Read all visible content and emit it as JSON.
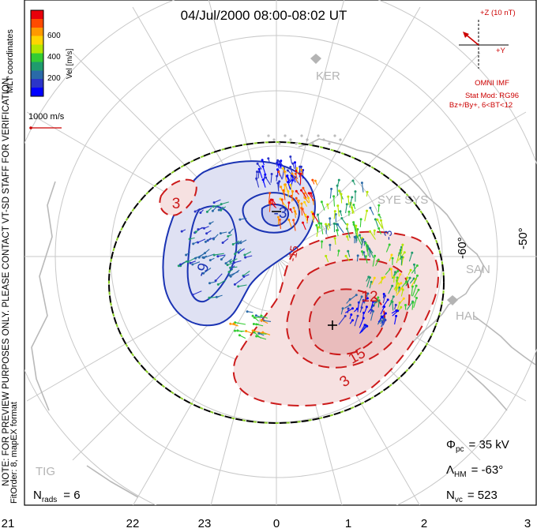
{
  "header": {
    "title": "04/Jul/2000 08:00-08:02 UT"
  },
  "colorbar": {
    "label": "Vel [m/s]",
    "ticks": [
      "600",
      "400",
      "200"
    ],
    "colors": [
      "#e8000b",
      "#ff4a00",
      "#ff9900",
      "#ffd500",
      "#b4e600",
      "#33cc33",
      "#1f9b6e",
      "#2a6aa8",
      "#2b35c8",
      "#0000ff"
    ]
  },
  "side_notes": {
    "coords": "MLT coordinates",
    "notice": "NOTE: FOR PREVIEW PURPOSES ONLY. PLEASE CONTACT VT-SD STAFF FOR VERIFICATION.",
    "fit": "FitOrder: 8, mapEX format"
  },
  "vector_scale": {
    "label": "1000 m/s"
  },
  "imf": {
    "scale_label": "+Z (10 nT)",
    "y_label": "+Y",
    "source": "OMNI IMF",
    "model": "Stat Mod: RG96",
    "conditions": "Bz+/By+, 6<BT<12"
  },
  "stations": [
    {
      "code": "KER"
    },
    {
      "code": "SYE SYS"
    },
    {
      "code": "SAN"
    },
    {
      "code": "HAL"
    },
    {
      "code": "TIG"
    }
  ],
  "latitude_labels": [
    "-60°",
    "-50°"
  ],
  "contours": {
    "labels": [
      "3",
      "-9",
      "-3",
      "12",
      "15",
      "-3",
      "3",
      "-15"
    ],
    "colors": {
      "negative": "#1a33b3",
      "positive": "#cc1a1a"
    }
  },
  "stats": {
    "phi_label": "Φ",
    "phi_sub": "pc",
    "phi_value": "= 35 kV",
    "lambda_label": "Λ",
    "lambda_sub": "HM",
    "lambda_value": "= -63°",
    "nvc_label": "N",
    "nvc_sub": "vc",
    "nvc_value": "= 523",
    "nrads_label": "N",
    "nrads_sub": "rads",
    "nrads_value": "= 6"
  },
  "mlt_axis": [
    "21",
    "22",
    "23",
    "0",
    "1",
    "2",
    "3"
  ]
}
